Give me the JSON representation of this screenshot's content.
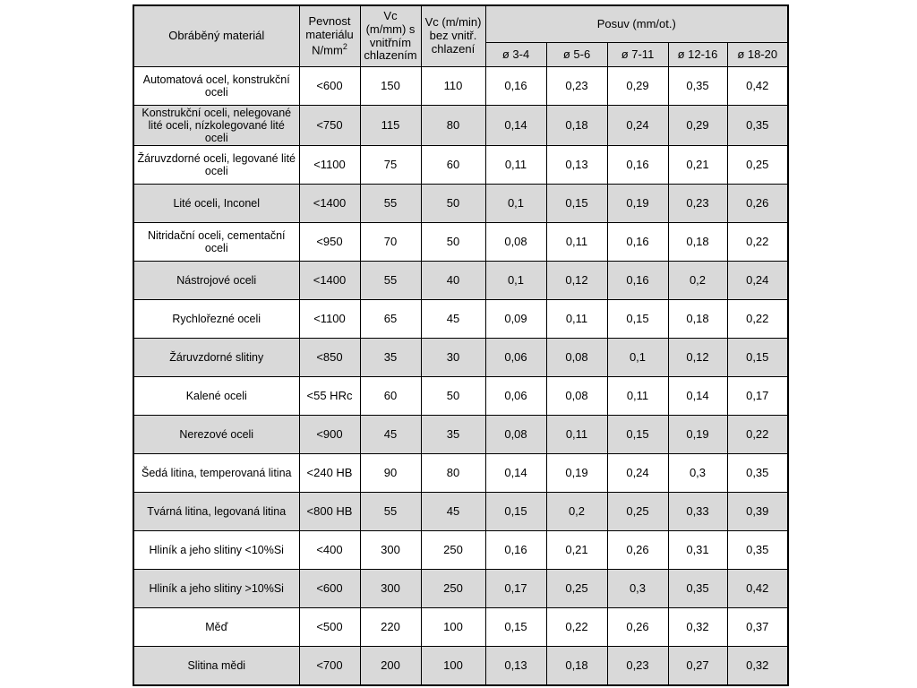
{
  "page": {
    "background": "#ffffff"
  },
  "table": {
    "colors": {
      "header_bg": "#d9d9d9",
      "shaded_row_bg": "#d9d9d9",
      "border": "#000000"
    },
    "headers": {
      "material": "Obráběný materiál",
      "strength_main": "Pevnost materiálu N/mm",
      "strength_sup": "2",
      "vc_internal": "Vc (m/mm) s vnitřním chlazením",
      "vc_external": "Vc (m/min) bez vnitř. chlazení",
      "posuv": "Posuv (mm/ot.)",
      "diameters": [
        "ø 3-4",
        "ø 5-6",
        "ø 7-11",
        "ø 12-16",
        "ø 18-20"
      ]
    },
    "rows": [
      {
        "material": "Automatová ocel, konstrukční oceli",
        "strength": "<600",
        "vc_internal": "150",
        "vc_external": "110",
        "feeds": [
          "0,16",
          "0,23",
          "0,29",
          "0,35",
          "0,42"
        ]
      },
      {
        "material": "Konstrukční oceli, nelegované lité oceli, nízkolegované lité oceli",
        "strength": "<750",
        "vc_internal": "115",
        "vc_external": "80",
        "feeds": [
          "0,14",
          "0,18",
          "0,24",
          "0,29",
          "0,35"
        ]
      },
      {
        "material": "Žáruvzdorné oceli, legované lité oceli",
        "strength": "<1100",
        "vc_internal": "75",
        "vc_external": "60",
        "feeds": [
          "0,11",
          "0,13",
          "0,16",
          "0,21",
          "0,25"
        ]
      },
      {
        "material": "Lité oceli, Inconel",
        "strength": "<1400",
        "vc_internal": "55",
        "vc_external": "50",
        "feeds": [
          "0,1",
          "0,15",
          "0,19",
          "0,23",
          "0,26"
        ]
      },
      {
        "material": "Nitridační oceli, cementační oceli",
        "strength": "<950",
        "vc_internal": "70",
        "vc_external": "50",
        "feeds": [
          "0,08",
          "0,11",
          "0,16",
          "0,18",
          "0,22"
        ]
      },
      {
        "material": "Nástrojové oceli",
        "strength": "<1400",
        "vc_internal": "55",
        "vc_external": "40",
        "feeds": [
          "0,1",
          "0,12",
          "0,16",
          "0,2",
          "0,24"
        ]
      },
      {
        "material": "Rychlořezné oceli",
        "strength": "<1100",
        "vc_internal": "65",
        "vc_external": "45",
        "feeds": [
          "0,09",
          "0,11",
          "0,15",
          "0,18",
          "0,22"
        ]
      },
      {
        "material": "Žáruvzdorné slitiny",
        "strength": "<850",
        "vc_internal": "35",
        "vc_external": "30",
        "feeds": [
          "0,06",
          "0,08",
          "0,1",
          "0,12",
          "0,15"
        ]
      },
      {
        "material": "Kalené oceli",
        "strength": "<55 HRc",
        "vc_internal": "60",
        "vc_external": "50",
        "feeds": [
          "0,06",
          "0,08",
          "0,11",
          "0,14",
          "0,17"
        ]
      },
      {
        "material": "Nerezové oceli",
        "strength": "<900",
        "vc_internal": "45",
        "vc_external": "35",
        "feeds": [
          "0,08",
          "0,11",
          "0,15",
          "0,19",
          "0,22"
        ]
      },
      {
        "material": "Šedá litina, temperovaná litina",
        "strength": "<240 HB",
        "vc_internal": "90",
        "vc_external": "80",
        "feeds": [
          "0,14",
          "0,19",
          "0,24",
          "0,3",
          "0,35"
        ]
      },
      {
        "material": "Tvárná litina, legovaná litina",
        "strength": "<800 HB",
        "vc_internal": "55",
        "vc_external": "45",
        "feeds": [
          "0,15",
          "0,2",
          "0,25",
          "0,33",
          "0,39"
        ]
      },
      {
        "material": "Hliník a jeho slitiny <10%Si",
        "strength": "<400",
        "vc_internal": "300",
        "vc_external": "250",
        "feeds": [
          "0,16",
          "0,21",
          "0,26",
          "0,31",
          "0,35"
        ]
      },
      {
        "material": "Hliník a jeho slitiny >10%Si",
        "strength": "<600",
        "vc_internal": "300",
        "vc_external": "250",
        "feeds": [
          "0,17",
          "0,25",
          "0,3",
          "0,35",
          "0,42"
        ]
      },
      {
        "material": "Měď",
        "strength": "<500",
        "vc_internal": "220",
        "vc_external": "100",
        "feeds": [
          "0,15",
          "0,22",
          "0,26",
          "0,32",
          "0,37"
        ]
      },
      {
        "material": "Slitina mědi",
        "strength": "<700",
        "vc_internal": "200",
        "vc_external": "100",
        "feeds": [
          "0,13",
          "0,18",
          "0,23",
          "0,27",
          "0,32"
        ]
      }
    ]
  }
}
